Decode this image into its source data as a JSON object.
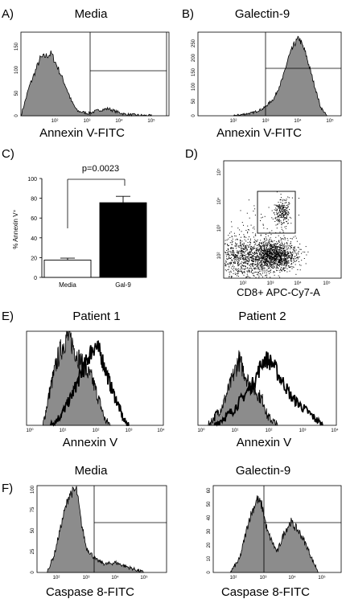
{
  "colors": {
    "fill": "#8c8c8c",
    "line": "#000000",
    "white": "#ffffff"
  },
  "panels": {
    "A": {
      "letter": "A)",
      "title": "Media",
      "xlabel": "Annexin V-FITC",
      "xticks": [
        "10²",
        "10³",
        "10⁴",
        "10⁵"
      ],
      "yticks": [
        "0",
        "50",
        "100",
        "150"
      ]
    },
    "B": {
      "letter": "B)",
      "title": "Galectin-9",
      "xlabel": "Annexin V-FITC",
      "xticks": [
        "10²",
        "10³",
        "10⁴",
        "10⁵"
      ],
      "yticks": [
        "0",
        "50",
        "100",
        "150",
        "200",
        "250"
      ]
    },
    "C": {
      "letter": "C)",
      "ylabel": "% Annexin V⁺",
      "pvalue": "p=0.0023"
    },
    "D": {
      "letter": "D)",
      "xlabel": "CD8+ APC-Cy7-A",
      "xticks": [
        "10²",
        "10³",
        "10⁴",
        "10⁵"
      ],
      "yticks": [
        "10²",
        "10³",
        "10⁴",
        "10⁵"
      ]
    },
    "E": {
      "letter": "E)",
      "title1": "Patient 1",
      "title2": "Patient 2",
      "xlabel1": "Annexin V",
      "xlabel2": "Annexin V",
      "xticks": [
        "10⁰",
        "10¹",
        "10²",
        "10³",
        "10⁴"
      ]
    },
    "F": {
      "letter": "F)",
      "title1": "Media",
      "title2": "Galectin-9",
      "xlabel1": "Caspase 8-FITC",
      "xlabel2": "Caspase 8-FITC",
      "xticks": [
        "10²",
        "10³",
        "10⁴",
        "10⁵"
      ],
      "yticks1": [
        "0",
        "25",
        "50",
        "75",
        "100"
      ],
      "yticks2": [
        "0",
        "10",
        "20",
        "30",
        "40",
        "50",
        "60"
      ]
    }
  },
  "chart_data": [
    {
      "type": "area",
      "panel": "A",
      "title": "Media",
      "xlabel": "Annexin V-FITC",
      "xscale": "log",
      "xlim": [
        30,
        300000
      ],
      "ylim": [
        0,
        175
      ],
      "series": [
        {
          "name": "Media",
          "x": [
            30,
            50,
            100,
            200,
            300,
            500,
            700,
            1000,
            2000,
            4000,
            7000,
            10000,
            20000,
            50000,
            100000
          ],
          "y": [
            0,
            60,
            120,
            130,
            100,
            60,
            30,
            10,
            5,
            12,
            15,
            10,
            3,
            1,
            0
          ]
        }
      ]
    },
    {
      "type": "area",
      "panel": "B",
      "title": "Galectin-9",
      "xlabel": "Annexin V-FITC",
      "xscale": "log",
      "xlim": [
        30,
        300000
      ],
      "ylim": [
        0,
        290
      ],
      "series": [
        {
          "name": "Galectin-9",
          "x": [
            300,
            1000,
            2000,
            4000,
            7000,
            10000,
            15000,
            20000,
            30000,
            50000,
            80000,
            120000
          ],
          "y": [
            0,
            10,
            25,
            60,
            130,
            200,
            250,
            270,
            220,
            120,
            30,
            0
          ]
        }
      ]
    },
    {
      "type": "bar",
      "panel": "C",
      "categories": [
        "Media",
        "Gal-9"
      ],
      "values": [
        17.5,
        75.5
      ],
      "errors": [
        2,
        6.5
      ],
      "ylabel": "% Annexin V⁺",
      "ylim": [
        0,
        100
      ],
      "yticks": [
        0,
        20,
        40,
        60,
        80,
        100
      ],
      "annotation": "p=0.0023"
    },
    {
      "type": "scatter",
      "panel": "D",
      "xlabel": "CD8+ APC-Cy7-A",
      "xscale": "log",
      "yscale": "log",
      "xlim": [
        30,
        300000
      ],
      "ylim": [
        30,
        300000
      ]
    },
    {
      "type": "area",
      "panel": "E1",
      "title": "Patient 1",
      "xlabel": "Annexin V",
      "xscale": "log",
      "xlim": [
        1,
        10000
      ],
      "ylim": [
        0,
        100
      ],
      "series": [
        {
          "x": [
            3,
            5,
            8,
            10,
            15,
            20,
            30,
            50,
            80,
            100,
            150,
            200,
            300
          ],
          "y": [
            0,
            40,
            70,
            80,
            95,
            90,
            75,
            60,
            50,
            40,
            20,
            5,
            0
          ]
        },
        {
          "x": [
            5,
            10,
            20,
            40,
            60,
            80,
            100,
            150,
            200,
            300,
            500,
            700,
            1000
          ],
          "y": [
            0,
            10,
            30,
            55,
            70,
            80,
            85,
            75,
            60,
            40,
            20,
            5,
            0
          ]
        }
      ]
    },
    {
      "type": "area",
      "panel": "E2",
      "title": "Patient 2",
      "xlabel": "Annexin V",
      "xscale": "log",
      "xlim": [
        1,
        10000
      ],
      "ylim": [
        0,
        100
      ],
      "series": [
        {
          "x": [
            2,
            5,
            10,
            15,
            20,
            30,
            50,
            80,
            100,
            200
          ],
          "y": [
            0,
            20,
            50,
            70,
            60,
            45,
            35,
            25,
            10,
            0
          ]
        },
        {
          "x": [
            3,
            10,
            20,
            40,
            60,
            80,
            100,
            150,
            200,
            300,
            500,
            1000,
            2000,
            4000
          ],
          "y": [
            0,
            15,
            30,
            45,
            60,
            70,
            70,
            65,
            55,
            45,
            30,
            20,
            10,
            0
          ]
        }
      ]
    },
    {
      "type": "area",
      "panel": "F1",
      "title": "Media",
      "xlabel": "Caspase 8-FITC",
      "xscale": "log",
      "xlim": [
        30,
        300000
      ],
      "ylim": [
        0,
        105
      ],
      "series": [
        {
          "name": "Media",
          "x": [
            60,
            100,
            200,
            300,
            500,
            700,
            1000,
            2000,
            4000,
            8000,
            15000,
            30000,
            60000
          ],
          "y": [
            0,
            20,
            70,
            95,
            100,
            60,
            30,
            15,
            10,
            12,
            8,
            4,
            0
          ]
        }
      ]
    },
    {
      "type": "area",
      "panel": "F2",
      "title": "Galectin-9",
      "xlabel": "Caspase 8-FITC",
      "xscale": "log",
      "xlim": [
        30,
        300000
      ],
      "ylim": [
        0,
        65
      ],
      "series": [
        {
          "name": "Galectin-9",
          "x": [
            100,
            200,
            400,
            700,
            1000,
            1500,
            3000,
            5000,
            8000,
            10000,
            15000,
            25000,
            40000,
            60000
          ],
          "y": [
            0,
            10,
            40,
            55,
            50,
            30,
            15,
            30,
            38,
            35,
            30,
            20,
            8,
            0
          ]
        }
      ]
    }
  ]
}
